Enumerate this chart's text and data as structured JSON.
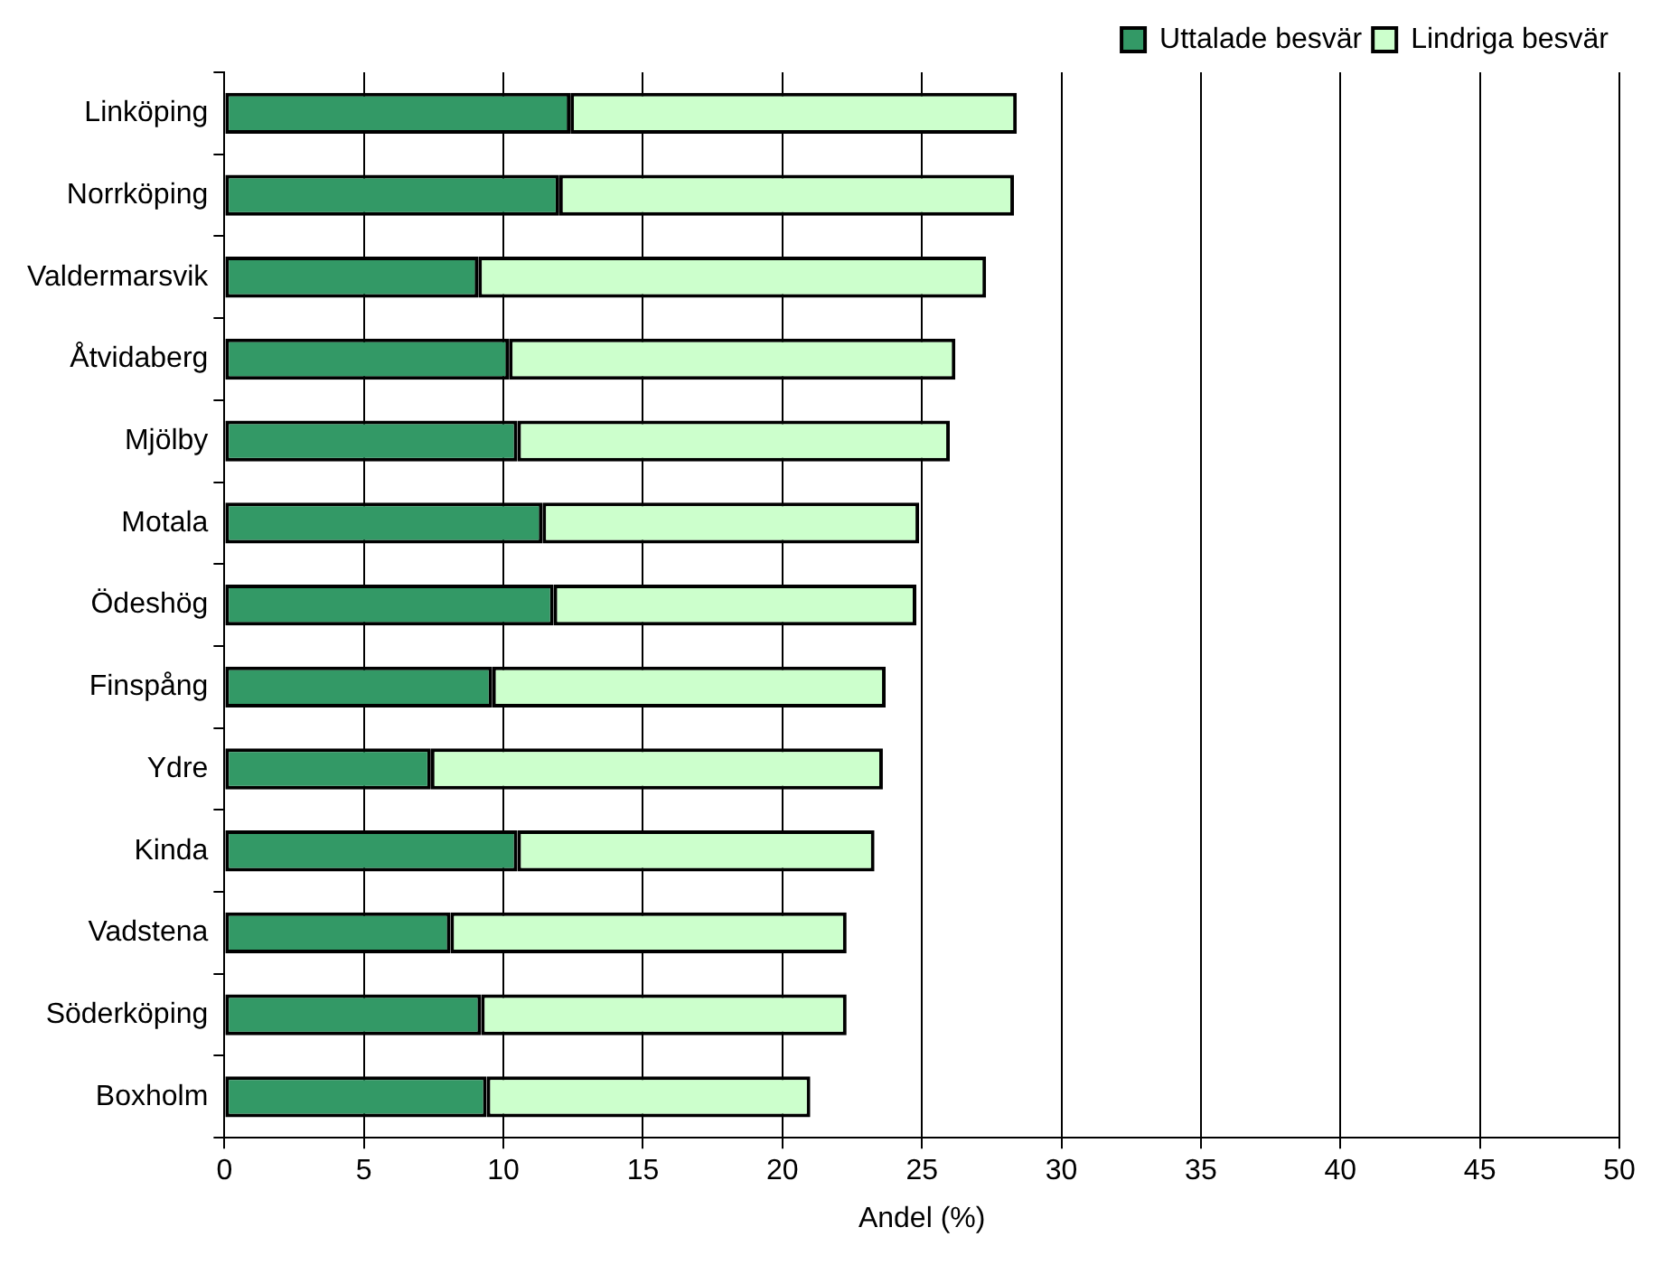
{
  "chart_data": {
    "type": "bar",
    "orientation": "horizontal",
    "stacked": true,
    "xlabel": "Andel (%)",
    "categories": [
      "Linköping",
      "Norrköping",
      "Valdermarsvik",
      "Åtvidaberg",
      "Mjölby",
      "Motala",
      "Ödeshög",
      "Finspång",
      "Ydre",
      "Kinda",
      "Vadstena",
      "Söderköping",
      "Boxholm"
    ],
    "series": [
      {
        "name": "Uttalade besvär",
        "color": "#339966",
        "values": [
          12.4,
          12.0,
          9.1,
          10.2,
          10.5,
          11.4,
          11.8,
          9.6,
          7.4,
          10.5,
          8.1,
          9.2,
          9.4
        ]
      },
      {
        "name": "Lindriga besvär",
        "color": "#ccffcc",
        "values": [
          16.0,
          16.3,
          18.2,
          16.0,
          15.5,
          13.5,
          13.0,
          14.1,
          16.2,
          12.8,
          14.2,
          13.1,
          11.6
        ]
      }
    ],
    "xlim": [
      0,
      50
    ],
    "xticks": [
      0,
      5,
      10,
      15,
      20,
      25,
      30,
      35,
      40,
      45,
      50
    ],
    "grid": "x",
    "legend": "top right"
  }
}
